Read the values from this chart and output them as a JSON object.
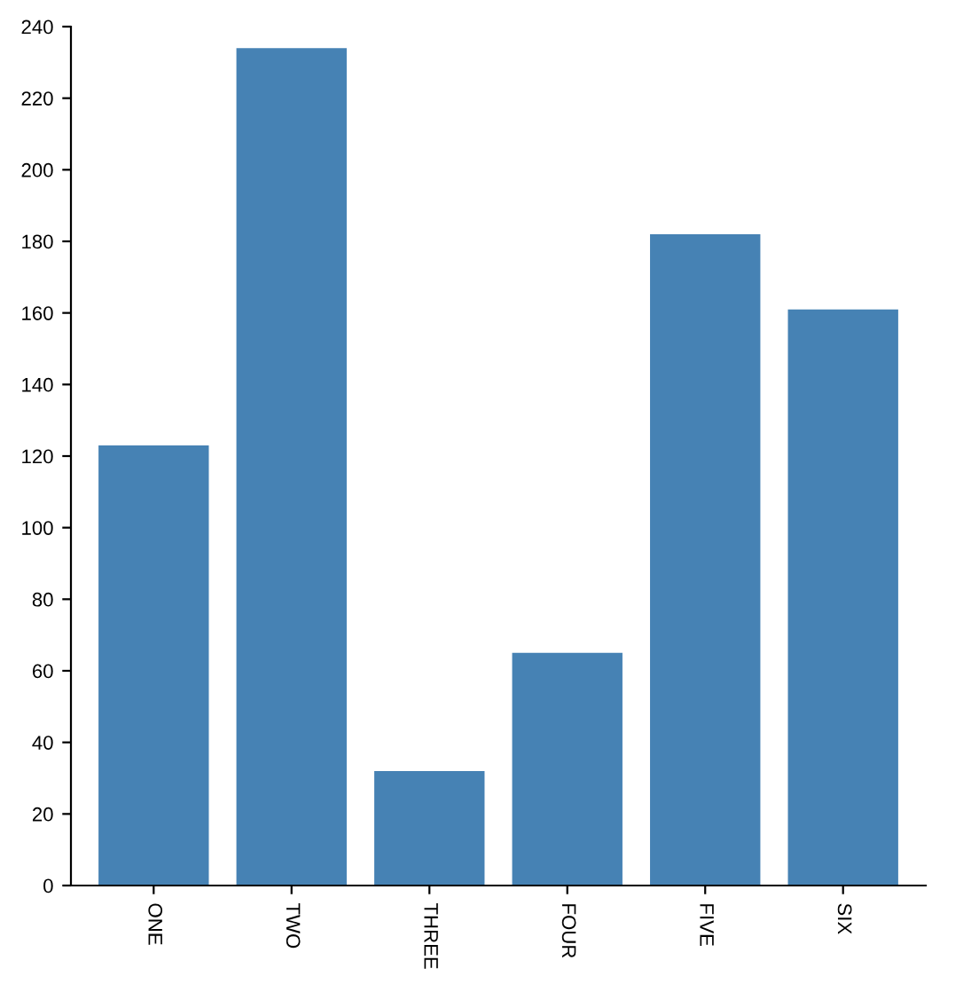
{
  "chart_data": {
    "type": "bar",
    "categories": [
      "ONE",
      "TWO",
      "THREE",
      "FOUR",
      "FIVE",
      "SIX"
    ],
    "values": [
      123,
      234,
      32,
      65,
      182,
      161
    ],
    "color": "#4682b4",
    "ylim": [
      0,
      240
    ],
    "yticks": [
      0,
      20,
      40,
      60,
      80,
      100,
      120,
      140,
      160,
      180,
      200,
      220,
      240
    ],
    "grid": false,
    "legend": false
  }
}
